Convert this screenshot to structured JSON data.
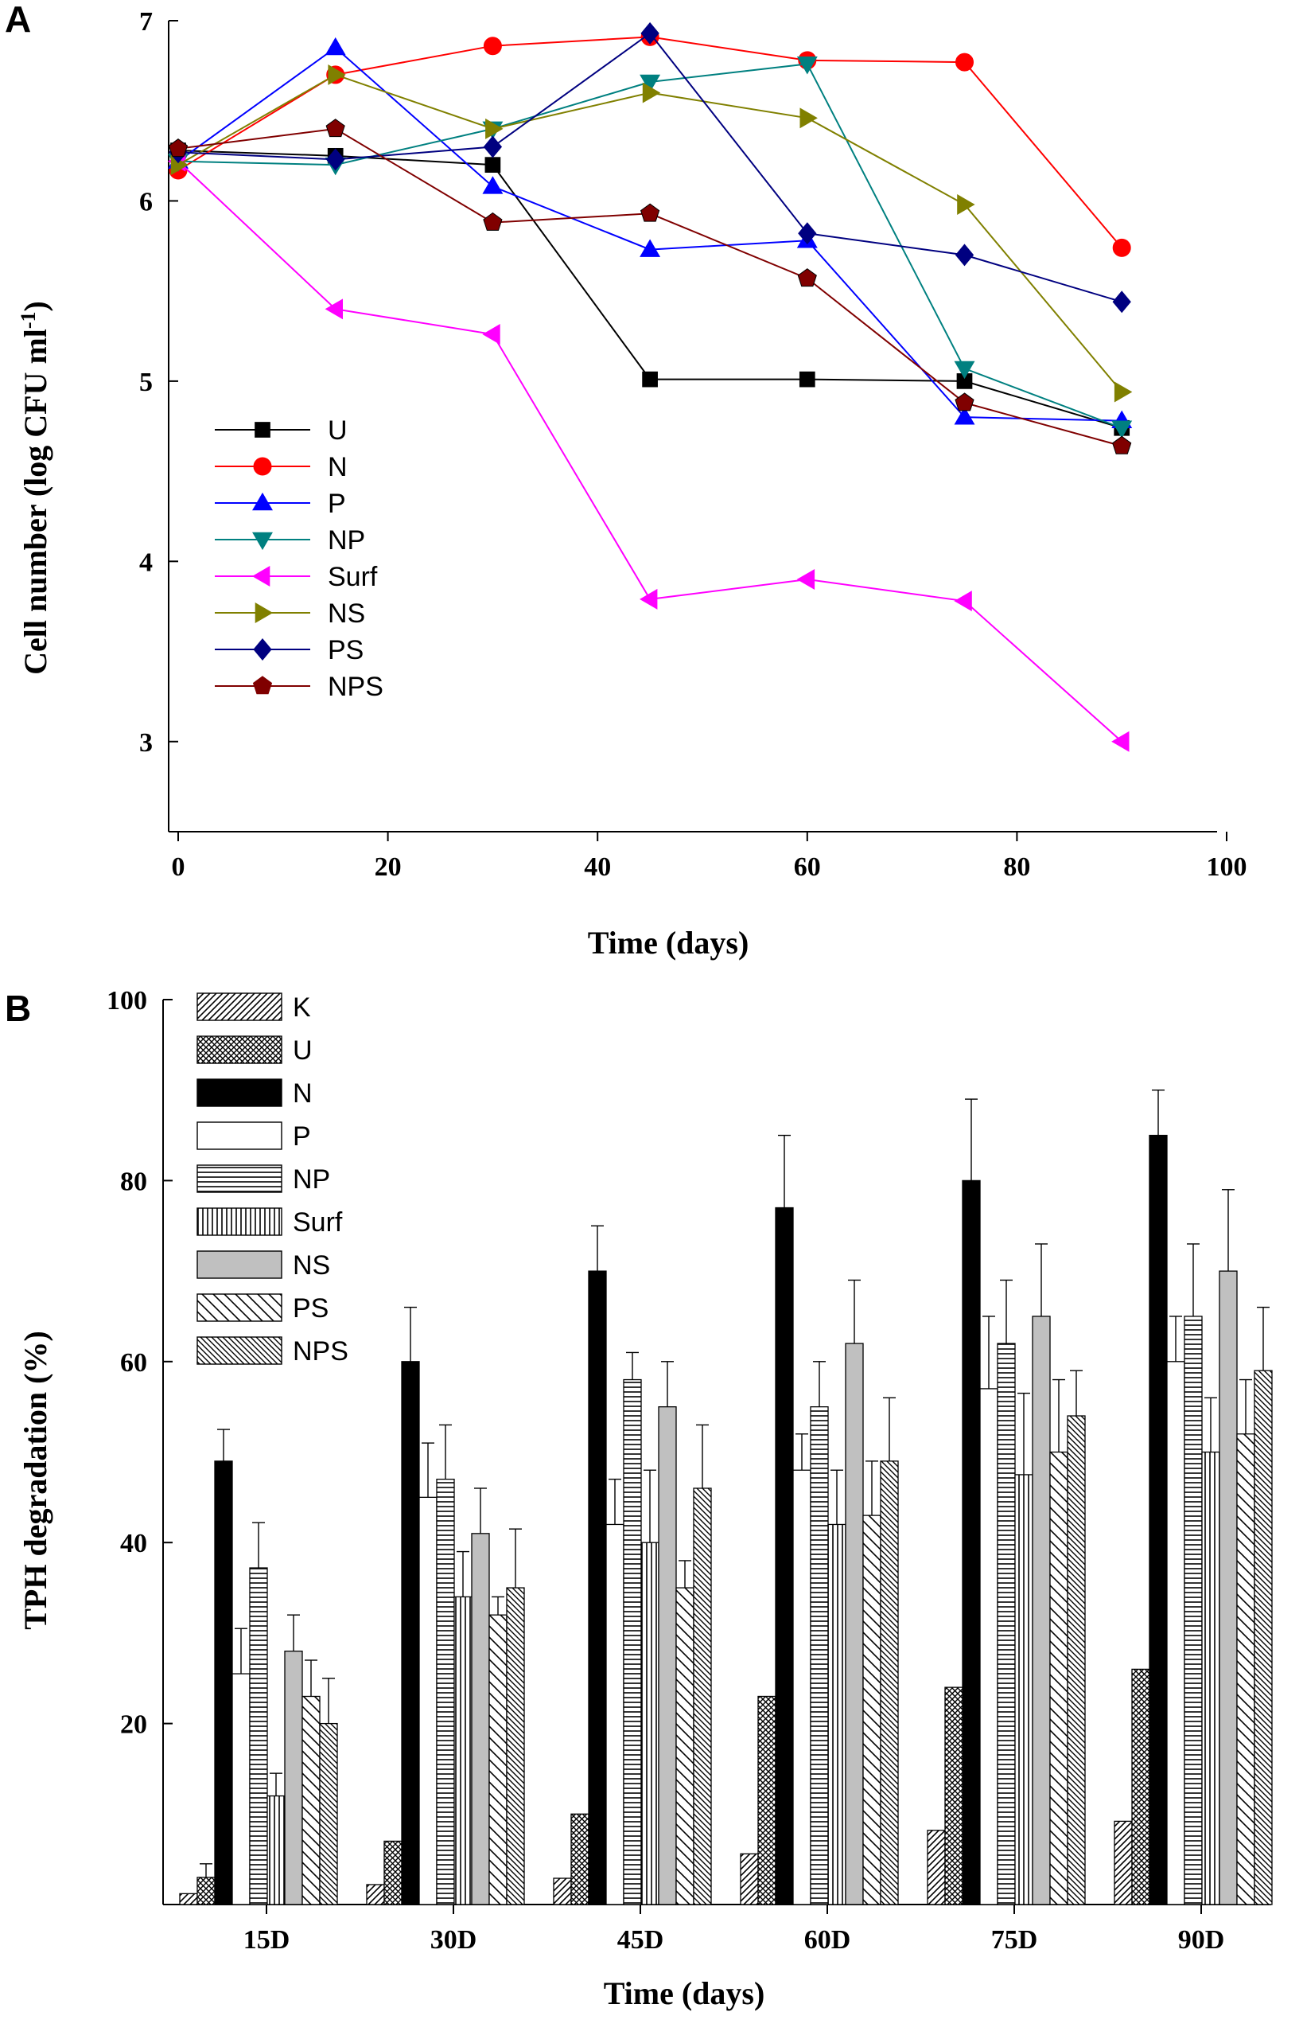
{
  "chart_data": [
    {
      "panel": "A",
      "type": "line",
      "xlabel": "Time (days)",
      "ylabel_main": "Cell number (log CFU ml",
      "ylabel_sup": "-1",
      "ylabel_end": ")",
      "xlim": [
        0,
        100
      ],
      "ylim": [
        2.5,
        7
      ],
      "xticks": [
        0,
        20,
        40,
        60,
        80,
        100
      ],
      "yticks": [
        3,
        4,
        5,
        6,
        7
      ],
      "x": [
        0,
        15,
        30,
        45,
        60,
        75,
        90
      ],
      "legend_position": "lower-left",
      "series": [
        {
          "name": "U",
          "color": "#000000",
          "marker": "square",
          "values": [
            6.28,
            6.25,
            6.2,
            5.01,
            5.01,
            5.0,
            4.74
          ]
        },
        {
          "name": "N",
          "color": "#ff0000",
          "marker": "circle",
          "values": [
            6.17,
            6.7,
            6.86,
            6.91,
            6.78,
            6.77,
            5.74
          ]
        },
        {
          "name": "P",
          "color": "#0000ff",
          "marker": "triangle-up",
          "values": [
            6.22,
            6.85,
            6.08,
            5.73,
            5.78,
            4.8,
            4.78
          ]
        },
        {
          "name": "NP",
          "color": "#008080",
          "marker": "triangle-down",
          "values": [
            6.22,
            6.2,
            6.4,
            6.66,
            6.76,
            5.07,
            4.74
          ]
        },
        {
          "name": "Surf",
          "color": "#ff00ff",
          "marker": "triangle-left",
          "values": [
            6.22,
            5.4,
            5.26,
            3.79,
            3.9,
            3.78,
            3.0
          ]
        },
        {
          "name": "NS",
          "color": "#808000",
          "marker": "triangle-right",
          "values": [
            6.2,
            6.7,
            6.4,
            6.6,
            6.46,
            5.98,
            4.94
          ]
        },
        {
          "name": "PS",
          "color": "#000080",
          "marker": "diamond",
          "values": [
            6.27,
            6.23,
            6.3,
            6.93,
            5.82,
            5.7,
            5.44
          ]
        },
        {
          "name": "NPS",
          "color": "#800000",
          "marker": "pentagon",
          "values": [
            6.29,
            6.4,
            5.88,
            5.93,
            5.57,
            4.88,
            4.64
          ]
        }
      ]
    },
    {
      "panel": "B",
      "type": "bar",
      "xlabel": "Time (days)",
      "ylabel": "TPH degradation (%)",
      "ylim": [
        0,
        100
      ],
      "yticks": [
        20,
        40,
        60,
        80,
        100
      ],
      "categories": [
        "15D",
        "30D",
        "45D",
        "60D",
        "75D",
        "90D"
      ],
      "legend_position": "top-left",
      "series": [
        {
          "name": "K",
          "pattern": "diag-dense",
          "values": [
            1.2,
            2.2,
            2.9,
            5.6,
            8.2,
            9.2
          ],
          "errors": [
            0,
            0,
            0,
            0,
            0,
            0
          ]
        },
        {
          "name": "U",
          "pattern": "crosshatch",
          "values": [
            3.0,
            7.0,
            10.0,
            23.0,
            24.0,
            26.0
          ],
          "errors": [
            1.5,
            0,
            0,
            0,
            0,
            0
          ]
        },
        {
          "name": "N",
          "pattern": "solid-black",
          "values": [
            49.0,
            60.0,
            70.0,
            77.0,
            80.0,
            85.0
          ],
          "errors": [
            3.5,
            6.0,
            5.0,
            8.0,
            9.0,
            5.0
          ]
        },
        {
          "name": "P",
          "pattern": "open",
          "values": [
            25.5,
            45.0,
            42.0,
            48.0,
            57.0,
            60.0
          ],
          "errors": [
            5.0,
            6.0,
            5.0,
            4.0,
            8.0,
            5.0
          ]
        },
        {
          "name": "NP",
          "pattern": "horizontal",
          "values": [
            37.2,
            47.0,
            58.0,
            55.0,
            62.0,
            65.0
          ],
          "errors": [
            5.0,
            6.0,
            3.0,
            5.0,
            7.0,
            8.0
          ]
        },
        {
          "name": "Surf",
          "pattern": "vertical",
          "values": [
            12.0,
            34.0,
            40.0,
            42.0,
            47.5,
            50.0
          ],
          "errors": [
            2.5,
            5.0,
            8.0,
            6.0,
            9.0,
            6.0
          ]
        },
        {
          "name": "NS",
          "pattern": "gray",
          "values": [
            28.0,
            41.0,
            55.0,
            62.0,
            65.0,
            70.0
          ],
          "errors": [
            4.0,
            5.0,
            5.0,
            7.0,
            8.0,
            9.0
          ]
        },
        {
          "name": "PS",
          "pattern": "diag-sparse",
          "values": [
            23.0,
            32.0,
            35.0,
            43.0,
            50.0,
            52.0
          ],
          "errors": [
            4.0,
            2.0,
            3.0,
            6.0,
            8.0,
            6.0
          ]
        },
        {
          "name": "NPS",
          "pattern": "diag-dense2",
          "values": [
            20.0,
            35.0,
            46.0,
            49.0,
            54.0,
            59.0
          ],
          "errors": [
            5.0,
            6.5,
            7.0,
            7.0,
            5.0,
            7.0
          ]
        }
      ]
    }
  ],
  "labels": {
    "panel_a": "A",
    "panel_b": "B"
  }
}
